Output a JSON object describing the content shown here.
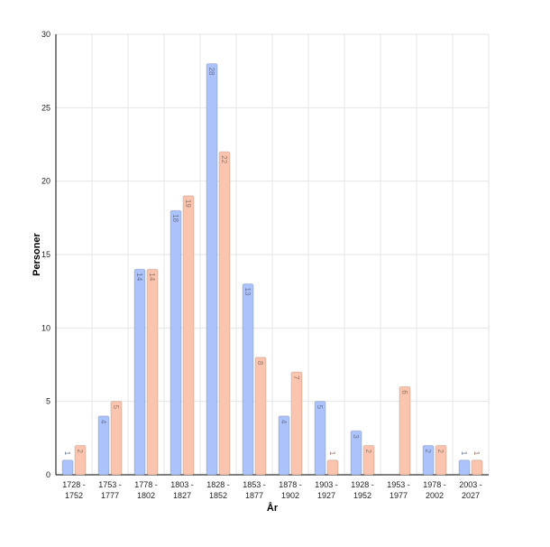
{
  "chart_data": {
    "type": "bar",
    "x_label": "År",
    "y_label": "Personer",
    "categories": [
      "1728 -\n1752",
      "1753 -\n1777",
      "1778 -\n1802",
      "1803 -\n1827",
      "1828 -\n1852",
      "1853 -\n1877",
      "1878 -\n1902",
      "1903 -\n1927",
      "1928 -\n1952",
      "1953 -\n1977",
      "1978 -\n2002",
      "2003 -\n2027"
    ],
    "series": [
      {
        "color": "#abc2fa",
        "values": [
          1,
          4,
          14,
          18,
          28,
          13,
          4,
          5,
          3,
          null,
          2,
          1
        ]
      },
      {
        "color": "#fbc4ae",
        "values": [
          2,
          5,
          14,
          19,
          22,
          8,
          7,
          1,
          2,
          6,
          2,
          1
        ]
      }
    ],
    "ylim": [
      0,
      30
    ],
    "yticks": [
      0,
      5,
      10,
      15,
      20,
      25,
      30
    ],
    "grid": true
  }
}
